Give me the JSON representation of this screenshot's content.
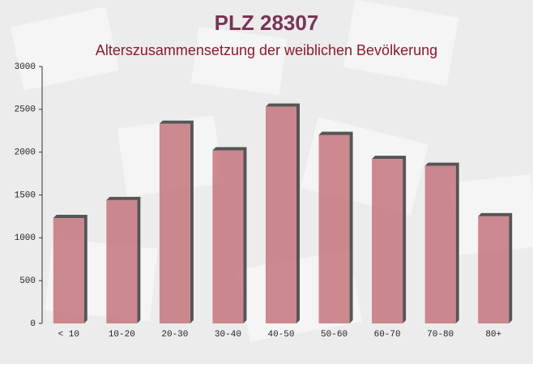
{
  "chart_data": {
    "type": "bar",
    "title": "PLZ 28307",
    "subtitle": "Alterszusammensetzung der weiblichen Bevölkerung",
    "categories": [
      "< 10",
      "10-20",
      "20-30",
      "30-40",
      "40-50",
      "50-60",
      "60-70",
      "70-80",
      "80+"
    ],
    "values": [
      1230,
      1440,
      2330,
      2020,
      2530,
      2200,
      1920,
      1840,
      1250
    ],
    "color": "#c4767c",
    "ylim": [
      0,
      3000
    ],
    "yticks": [
      0,
      500,
      1000,
      1500,
      2000,
      2500,
      3000
    ],
    "grid": false
  }
}
